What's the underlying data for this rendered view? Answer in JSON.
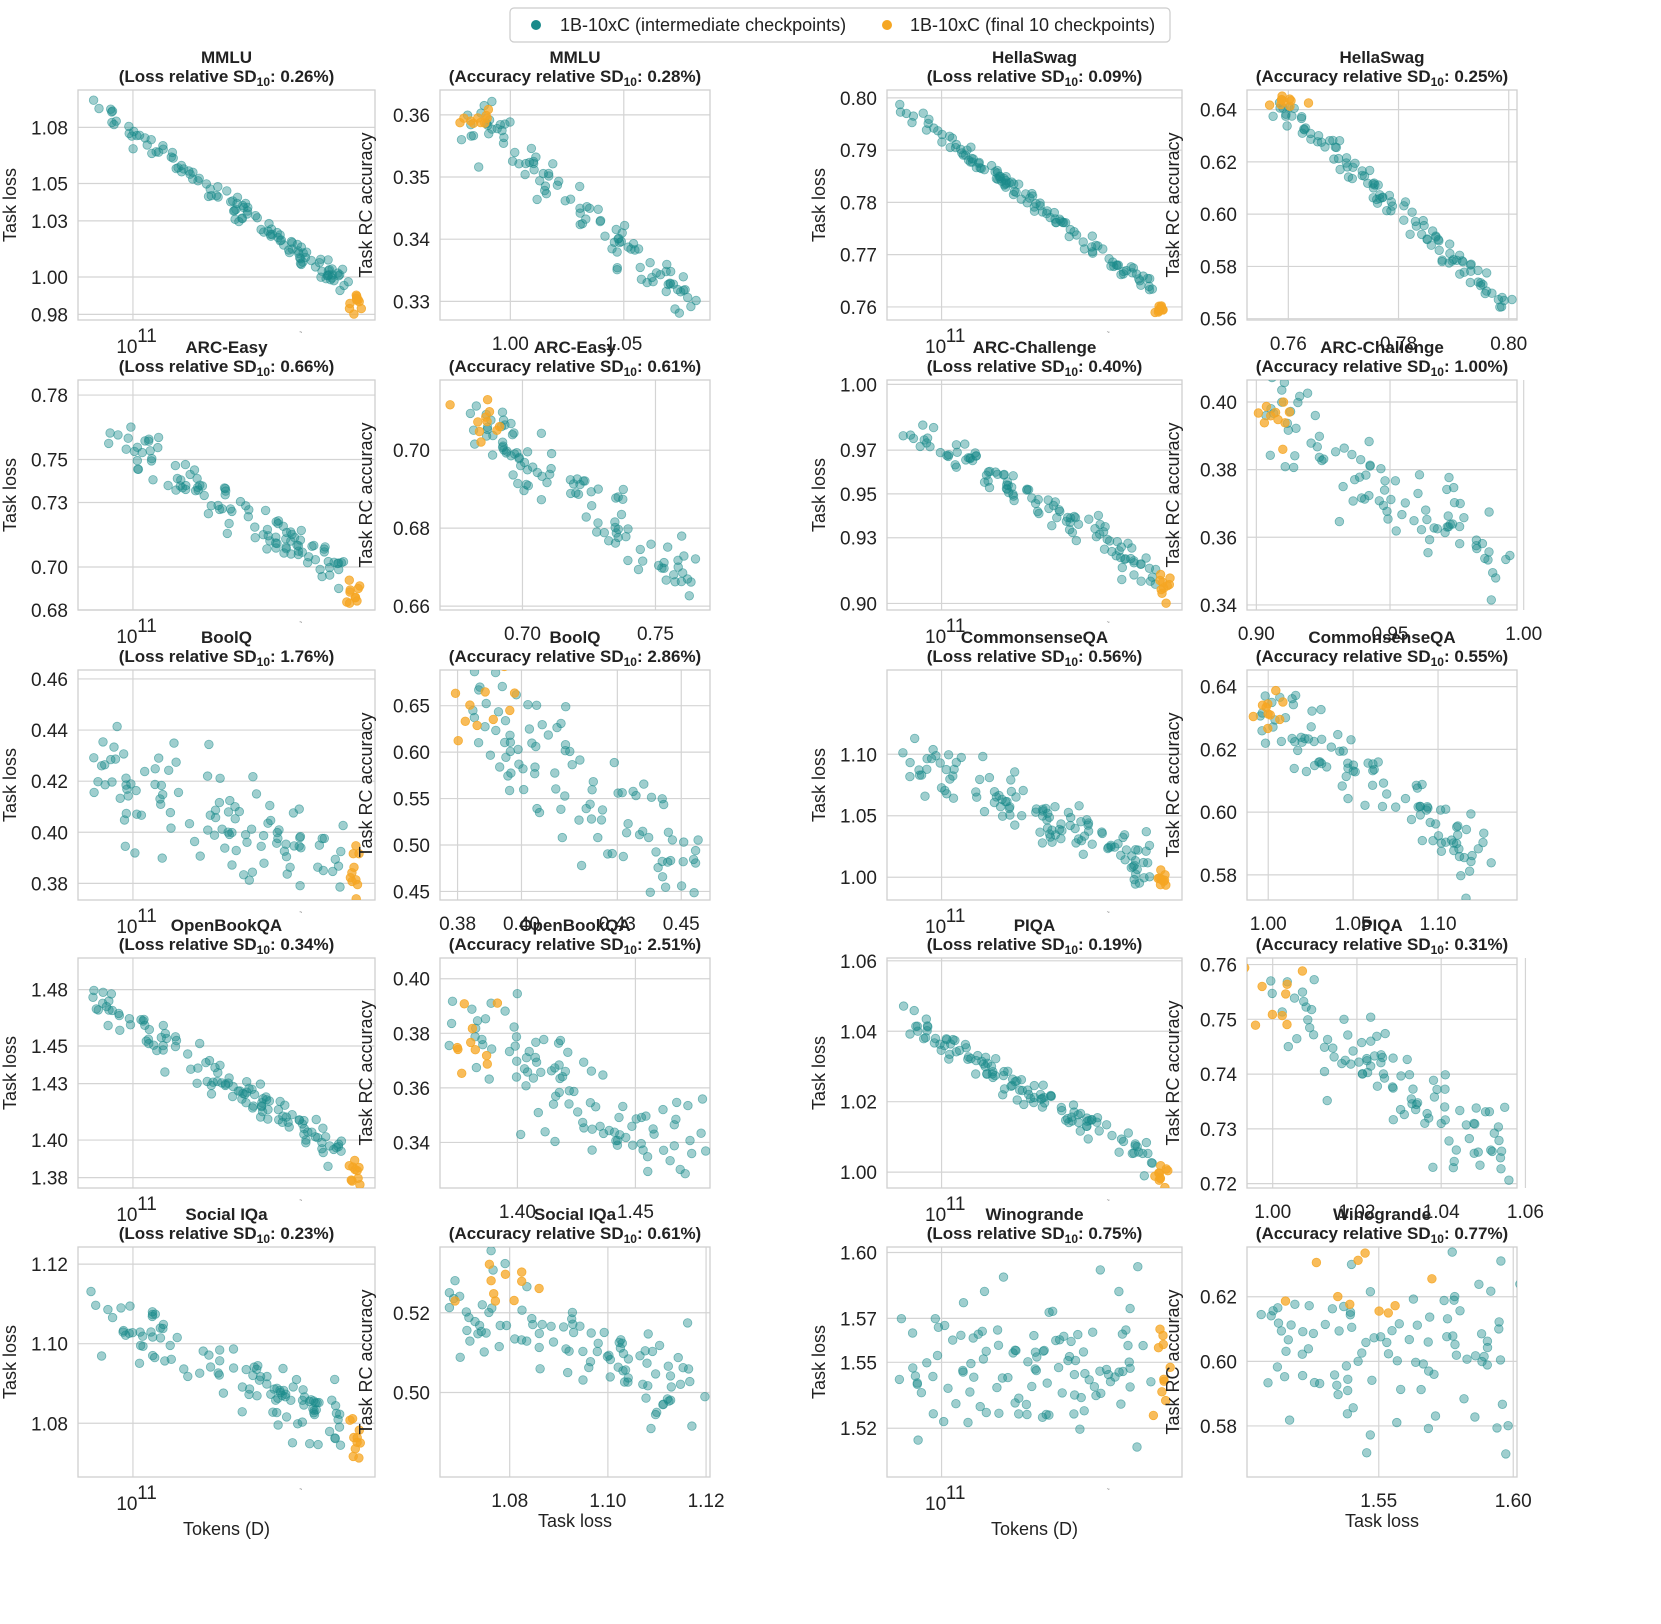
{
  "legend": {
    "intermediate_label": "1B-10xC (intermediate checkpoints)",
    "final_label": "1B-10xC (final 10 checkpoints)",
    "intermediate_color": "#1a8a8a",
    "final_color": "#f5a623"
  },
  "axis_text": {
    "task_loss": "Task loss",
    "task_rc_accuracy": "Task RC accuracy",
    "tokens": "Tokens (D)",
    "log_tick": "10",
    "log_tick_exp": "11",
    "minor_tick": "~",
    "sd_prefix_loss": "(Loss relative SD",
    "sd_prefix_acc": "(Accuracy relative SD",
    "sd_sub": "10"
  },
  "chart_data": [
    {
      "id": "mmlu-loss",
      "task": "MMLU",
      "type": "scatter",
      "kind": "loss",
      "sd": "0.26%",
      "yticks": [
        "1.08",
        "1.05",
        "1.03",
        "1.00",
        "0.98"
      ],
      "xticks": [
        "10"
      ],
      "ylim": [
        0.977,
        1.1
      ],
      "xlim": [
        0,
        1
      ],
      "trend": [
        1.098,
        0.985
      ],
      "n": 120,
      "noise": 0.003,
      "final_noise": 0.003
    },
    {
      "id": "mmlu-acc",
      "task": "MMLU",
      "type": "scatter",
      "kind": "acc",
      "sd": "0.28%",
      "yticks": [
        "0.36",
        "0.35",
        "0.34",
        "0.33"
      ],
      "xticks": [
        "1.00",
        "1.05"
      ],
      "ylim": [
        0.327,
        0.364
      ],
      "xlim": [
        0.969,
        1.088
      ],
      "trend": [
        [
          0.982,
          0.36
        ],
        [
          1.083,
          0.329
        ]
      ],
      "fc": [
        0.985,
        0.3598
      ],
      "n": 100,
      "noise": 0.0018,
      "final_spread": [
        0.004,
        0.0012
      ]
    },
    {
      "id": "hellaswag-loss",
      "task": "HellaSwag",
      "type": "scatter",
      "kind": "loss",
      "sd": "0.09%",
      "yticks": [
        "0.80",
        "0.79",
        "0.78",
        "0.77",
        "0.76"
      ],
      "xticks": [
        "10"
      ],
      "ylim": [
        0.7575,
        0.8015
      ],
      "xlim": [
        0,
        1
      ],
      "trend": [
        0.8,
        0.7595
      ],
      "n": 120,
      "noise": 0.0009,
      "final_noise": 0.0006
    },
    {
      "id": "hellaswag-acc",
      "task": "HellaSwag",
      "type": "scatter",
      "kind": "acc",
      "sd": "0.25%",
      "yticks": [
        "0.64",
        "0.62",
        "0.60",
        "0.58",
        "0.56"
      ],
      "xticks": [
        "0.76",
        "0.78",
        "0.80"
      ],
      "ylim": [
        0.5595,
        0.6475
      ],
      "xlim": [
        0.7525,
        0.8015
      ],
      "trend": [
        [
          0.7585,
          0.642
        ],
        [
          0.7995,
          0.565
        ]
      ],
      "fc": [
        0.7598,
        0.6425
      ],
      "n": 110,
      "noise": 0.002,
      "final_spread": [
        0.0015,
        0.0012
      ]
    },
    {
      "id": "arc-easy-loss",
      "task": "ARC-Easy",
      "type": "scatter",
      "kind": "loss",
      "sd": "0.66%",
      "yticks": [
        "0.78",
        "0.75",
        "0.73",
        "0.70",
        "0.68"
      ],
      "xticks": [
        "10"
      ],
      "ylim": [
        0.68,
        0.787
      ],
      "xlim": [
        0,
        1
      ],
      "trend": [
        0.772,
        0.687
      ],
      "n": 110,
      "noise": 0.005,
      "final_noise": 0.0035
    },
    {
      "id": "arc-easy-acc",
      "task": "ARC-Easy",
      "type": "scatter",
      "kind": "acc",
      "sd": "0.61%",
      "yticks": [
        "0.70",
        "0.68",
        "0.66"
      ],
      "xticks": [
        "0.70",
        "0.75"
      ],
      "ylim": [
        0.659,
        0.718
      ],
      "xlim": [
        0.669,
        0.7705
      ],
      "trend": [
        [
          0.68,
          0.708
        ],
        [
          0.765,
          0.667
        ]
      ],
      "fc": [
        0.688,
        0.706
      ],
      "n": 100,
      "noise": 0.004,
      "final_spread": [
        0.006,
        0.003
      ]
    },
    {
      "id": "arc-challenge-loss",
      "task": "ARC-Challenge",
      "type": "scatter",
      "kind": "loss",
      "sd": "0.40%",
      "yticks": [
        "1.00",
        "0.97",
        "0.95",
        "0.93",
        "0.90"
      ],
      "xticks": [
        "10"
      ],
      "ylim": [
        0.897,
        1.002
      ],
      "xlim": [
        0,
        1
      ],
      "trend": [
        0.986,
        0.907
      ],
      "n": 110,
      "noise": 0.004,
      "final_noise": 0.003
    },
    {
      "id": "arc-challenge-acc",
      "task": "ARC-Challenge",
      "type": "scatter",
      "kind": "acc",
      "sd": "1.00%",
      "yticks": [
        "0.40",
        "0.38",
        "0.36",
        "0.34"
      ],
      "xticks": [
        "0.90",
        "0.95",
        "1.00"
      ],
      "ylim": [
        0.3385,
        0.4065
      ],
      "xlim": [
        0.8965,
        0.9975
      ],
      "trend": [
        [
          0.903,
          0.397
        ],
        [
          0.995,
          0.351
        ]
      ],
      "fc": [
        0.908,
        0.396
      ],
      "n": 90,
      "noise": 0.006,
      "final_spread": [
        0.004,
        0.004
      ]
    },
    {
      "id": "boolq-loss",
      "task": "BoolQ",
      "type": "scatter",
      "kind": "loss",
      "sd": "1.76%",
      "yticks": [
        "0.46",
        "0.44",
        "0.42",
        "0.40",
        "0.38"
      ],
      "xticks": [
        "10"
      ],
      "ylim": [
        0.3735,
        0.4635
      ],
      "xlim": [
        0,
        1
      ],
      "trend": [
        0.425,
        0.385
      ],
      "n": 110,
      "noise": 0.012,
      "final_noise": 0.006
    },
    {
      "id": "boolq-acc",
      "task": "BoolQ",
      "type": "scatter",
      "kind": "acc",
      "sd": "2.86%",
      "yticks": [
        "0.65",
        "0.60",
        "0.55",
        "0.50",
        "0.45"
      ],
      "xticks": [
        "0.38",
        "0.40",
        "0.43",
        "0.45"
      ],
      "ylim": [
        0.4408,
        0.6884
      ],
      "xlim": [
        0.3745,
        0.459
      ],
      "trend": [
        [
          0.382,
          0.648
        ],
        [
          0.456,
          0.47
        ]
      ],
      "fc": [
        0.388,
        0.65
      ],
      "n": 100,
      "noise": 0.035,
      "final_spread": [
        0.008,
        0.02
      ]
    },
    {
      "id": "commonsenseqa-loss",
      "task": "CommonsenseQA",
      "type": "scatter",
      "kind": "loss",
      "sd": "0.56%",
      "yticks": [
        "1.10",
        "1.05",
        "1.00"
      ],
      "xticks": [
        "10"
      ],
      "ylim": [
        0.9815,
        1.1685
      ],
      "xlim": [
        0,
        1
      ],
      "trend": [
        1.105,
        1.0
      ],
      "n": 120,
      "noise": 0.011,
      "final_noise": 0.005
    },
    {
      "id": "commonsenseqa-acc",
      "task": "CommonsenseQA",
      "type": "scatter",
      "kind": "acc",
      "sd": "0.55%",
      "yticks": [
        "0.64",
        "0.62",
        "0.60",
        "0.58"
      ],
      "xticks": [
        "1.00",
        "1.05",
        "1.10"
      ],
      "ylim": [
        0.572,
        0.6453
      ],
      "xlim": [
        0.9875,
        1.1465
      ],
      "trend": [
        [
          0.998,
          0.632
        ],
        [
          1.135,
          0.582
        ]
      ],
      "fc": [
        1.001,
        0.633
      ],
      "n": 100,
      "noise": 0.006,
      "final_spread": [
        0.004,
        0.003
      ]
    },
    {
      "id": "openbookqa-loss",
      "task": "OpenBookQA",
      "type": "scatter",
      "kind": "loss",
      "sd": "0.34%",
      "yticks": [
        "1.48",
        "1.45",
        "1.43",
        "1.40",
        "1.38"
      ],
      "xticks": [
        "10"
      ],
      "ylim": [
        1.3745,
        1.4968
      ],
      "xlim": [
        0,
        1
      ],
      "trend": [
        1.478,
        1.383
      ],
      "n": 120,
      "noise": 0.005,
      "final_noise": 0.0035
    },
    {
      "id": "openbookqa-acc",
      "task": "OpenBookQA",
      "type": "scatter",
      "kind": "acc",
      "sd": "2.51%",
      "yticks": [
        "0.40",
        "0.38",
        "0.36",
        "0.34"
      ],
      "xticks": [
        "1.40",
        "1.45"
      ],
      "ylim": [
        0.3233,
        0.4076
      ],
      "xlim": [
        1.3672,
        1.4816
      ],
      "trend": [
        [
          1.374,
          0.383
        ],
        [
          1.478,
          0.333
        ]
      ],
      "fc": [
        1.385,
        0.378
      ],
      "n": 100,
      "noise": 0.01,
      "final_spread": [
        0.008,
        0.008
      ]
    },
    {
      "id": "piqa-loss",
      "task": "PIQA",
      "type": "scatter",
      "kind": "loss",
      "sd": "0.19%",
      "yticks": [
        "1.06",
        "1.04",
        "1.02",
        "1.00"
      ],
      "xticks": [
        "10"
      ],
      "ylim": [
        0.9955,
        1.0608
      ],
      "xlim": [
        0,
        1
      ],
      "trend": [
        1.046,
        0.999
      ],
      "n": 120,
      "noise": 0.002,
      "final_noise": 0.0015
    },
    {
      "id": "piqa-acc",
      "task": "PIQA",
      "type": "scatter",
      "kind": "acc",
      "sd": "0.31%",
      "yticks": [
        "0.76",
        "0.75",
        "0.74",
        "0.73",
        "0.72"
      ],
      "xticks": [
        "1.00",
        "1.02",
        "1.04",
        "1.06"
      ],
      "ylim": [
        0.7192,
        0.7612
      ],
      "xlim": [
        0.9939,
        1.058
      ],
      "trend": [
        [
          0.998,
          0.755
        ],
        [
          1.056,
          0.725
        ]
      ],
      "fc": [
        0.9995,
        0.754
      ],
      "n": 100,
      "noise": 0.004,
      "final_spread": [
        0.0035,
        0.004
      ]
    },
    {
      "id": "social-iqa-loss",
      "task": "Social IQa",
      "type": "scatter",
      "kind": "loss",
      "sd": "0.23%",
      "yticks": [
        "1.12",
        "1.10",
        "1.08"
      ],
      "xticks": [
        "10"
      ],
      "ylim": [
        1.0665,
        1.1243
      ],
      "xlim": [
        0,
        1
      ],
      "trend": [
        1.11,
        1.076
      ],
      "n": 110,
      "noise": 0.0045,
      "final_noise": 0.0025
    },
    {
      "id": "social-iqa-acc",
      "task": "Social IQa",
      "type": "scatter",
      "kind": "acc",
      "sd": "0.61%",
      "yticks": [
        "0.52",
        "0.50"
      ],
      "xticks": [
        "1.08",
        "1.10",
        "1.12"
      ],
      "ylim": [
        0.4788,
        0.5365
      ],
      "xlim": [
        1.0658,
        1.1208
      ],
      "trend": [
        [
          1.068,
          0.522
        ],
        [
          1.12,
          0.5
        ]
      ],
      "fc": [
        1.079,
        0.526
      ],
      "n": 100,
      "noise": 0.006,
      "final_spread": [
        0.004,
        0.003
      ]
    },
    {
      "id": "winogrande-loss",
      "task": "Winogrande",
      "type": "scatter",
      "kind": "loss",
      "sd": "0.75%",
      "yticks": [
        "1.60",
        "1.57",
        "1.55",
        "1.52"
      ],
      "xticks": [
        "10"
      ],
      "ylim": [
        1.4978,
        1.6025
      ],
      "xlim": [
        0,
        1
      ],
      "trend": [
        1.548,
        1.545
      ],
      "n": 110,
      "noise": 0.016,
      "final_noise": 0.012
    },
    {
      "id": "winogrande-acc",
      "task": "Winogrande",
      "type": "scatter",
      "kind": "acc",
      "sd": "0.77%",
      "yticks": [
        "0.62",
        "0.60",
        "0.58"
      ],
      "xticks": [
        "1.55",
        "1.60"
      ],
      "ylim": [
        0.5642,
        0.6354
      ],
      "xlim": [
        1.501,
        1.6014
      ],
      "trend": [
        [
          1.505,
          0.606
        ],
        [
          1.598,
          0.603
        ]
      ],
      "fc": [
        1.542,
        0.621
      ],
      "n": 100,
      "noise": 0.015,
      "final_spread": [
        0.012,
        0.006
      ]
    }
  ]
}
